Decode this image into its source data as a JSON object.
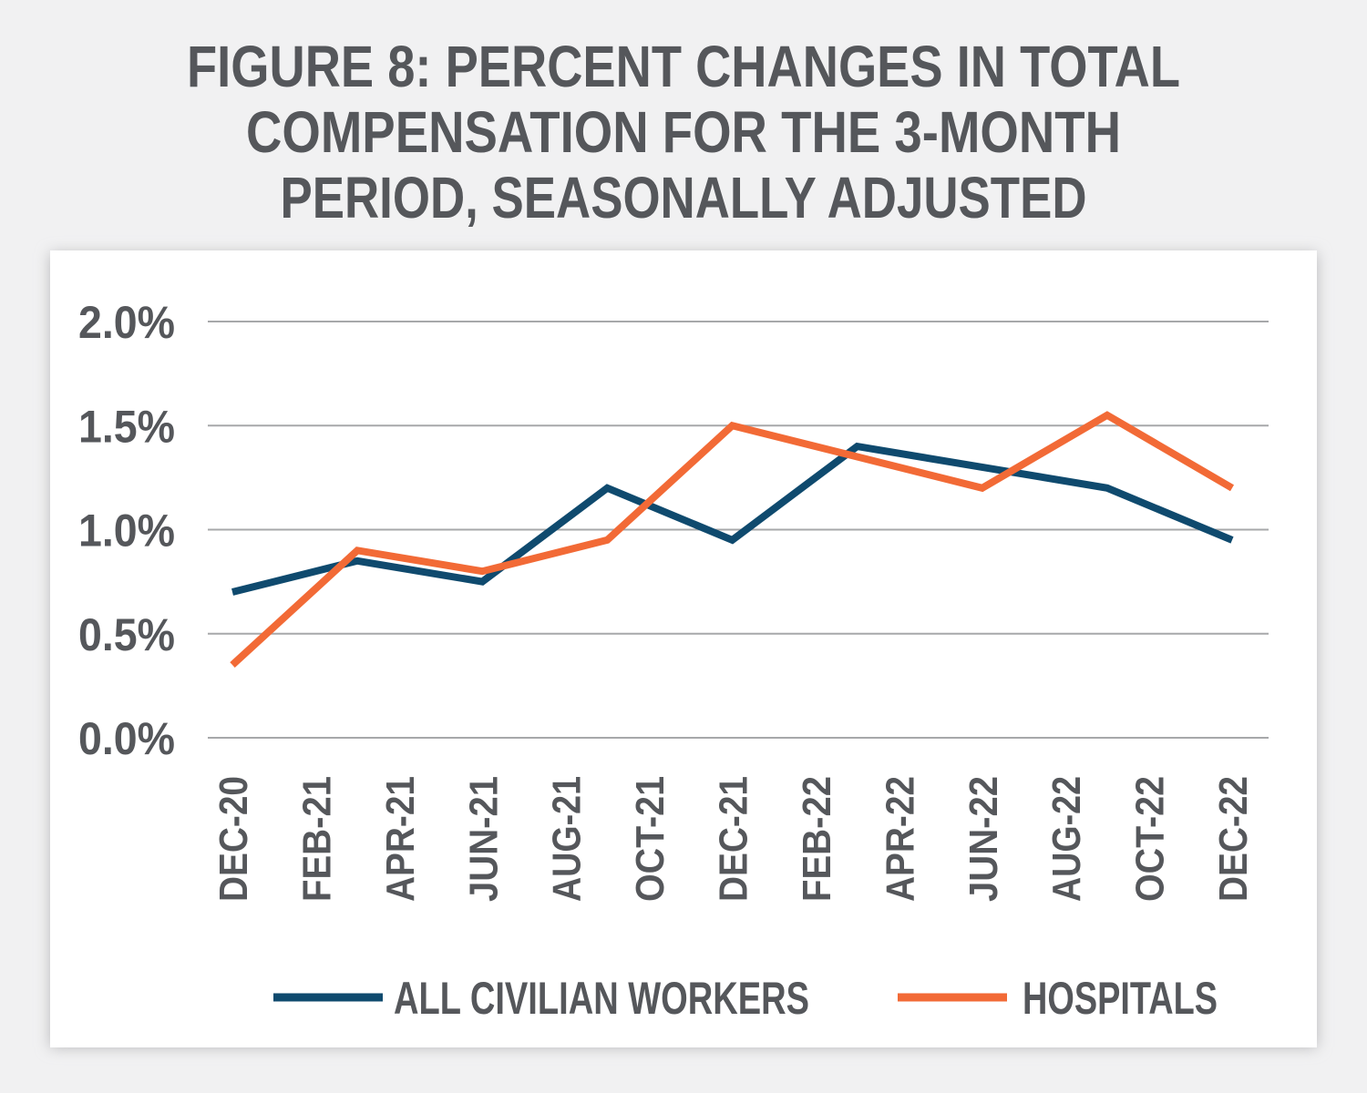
{
  "chart_data": {
    "type": "line",
    "title": [
      "FIGURE 8: PERCENT CHANGES IN TOTAL",
      "COMPENSATION FOR THE 3-MONTH",
      "PERIOD, SEASONALLY ADJUSTED"
    ],
    "x": [
      "2020-12",
      "2021-03",
      "2021-06",
      "2021-09",
      "2021-12",
      "2022-03",
      "2022-06",
      "2022-09",
      "2022-12"
    ],
    "xlim": [
      "2020-12",
      "2022-12"
    ],
    "xticks": [
      {
        "value": "2020-12",
        "label": "DEC-20"
      },
      {
        "value": "2021-02",
        "label": "FEB-21"
      },
      {
        "value": "2021-04",
        "label": "APR-21"
      },
      {
        "value": "2021-06",
        "label": "JUN-21"
      },
      {
        "value": "2021-08",
        "label": "AUG-21"
      },
      {
        "value": "2021-10",
        "label": "OCT-21"
      },
      {
        "value": "2021-12",
        "label": "DEC-21"
      },
      {
        "value": "2022-02",
        "label": "FEB-22"
      },
      {
        "value": "2022-04",
        "label": "APR-22"
      },
      {
        "value": "2022-06",
        "label": "JUN-22"
      },
      {
        "value": "2022-08",
        "label": "AUG-22"
      },
      {
        "value": "2022-10",
        "label": "OCT-22"
      },
      {
        "value": "2022-12",
        "label": "DEC-22"
      }
    ],
    "ylim": [
      0,
      2.0
    ],
    "yticks": [
      {
        "value": 0,
        "label": "0.0%"
      },
      {
        "value": 0.5,
        "label": "0.5%"
      },
      {
        "value": 1.0,
        "label": "1.0%"
      },
      {
        "value": 1.5,
        "label": "1.5%"
      },
      {
        "value": 2.0,
        "label": "2.0%"
      }
    ],
    "grid": true,
    "series": [
      {
        "name": "ALL CIVILIAN WORKERS",
        "color": "#0f4a6e",
        "values": [
          0.7,
          0.85,
          0.75,
          1.2,
          0.95,
          1.4,
          1.3,
          1.2,
          0.95
        ]
      },
      {
        "name": "HOSPITALS",
        "color": "#f26a36",
        "values": [
          0.35,
          0.9,
          0.8,
          0.95,
          1.5,
          1.35,
          1.2,
          1.55,
          1.2
        ]
      }
    ]
  }
}
